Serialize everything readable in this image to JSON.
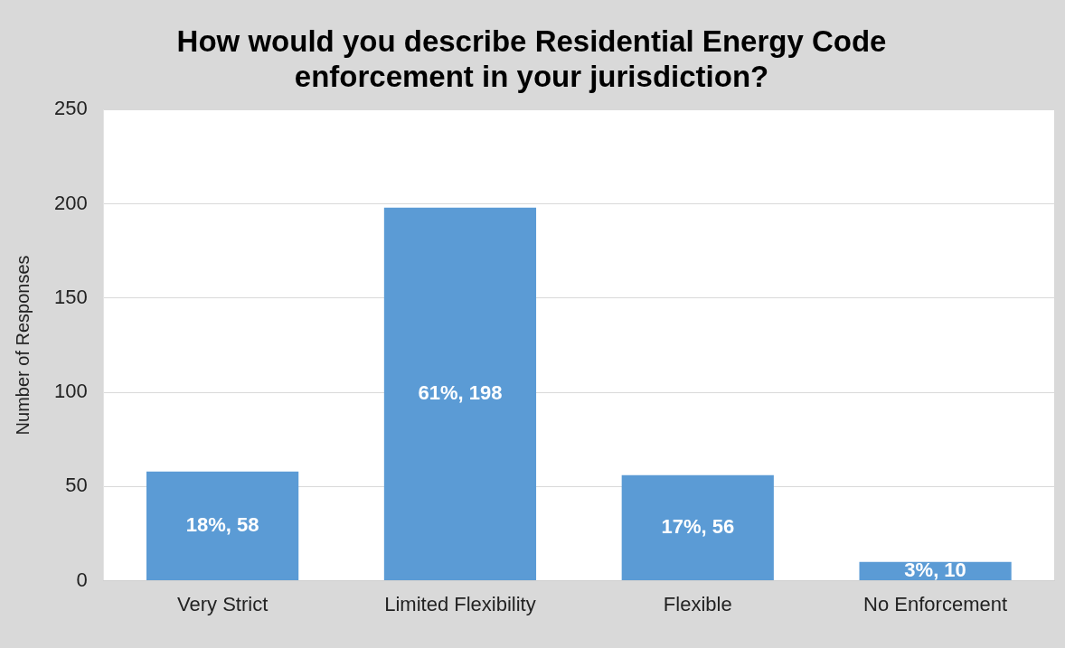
{
  "chart_data": {
    "type": "bar",
    "title": "How would you describe Residential Energy Code enforcement in your jurisdiction?",
    "ylabel": "Number of Responses",
    "categories": [
      "Very Strict",
      "Limited Flexibility",
      "Flexible",
      "No Enforcement"
    ],
    "values": [
      58,
      198,
      56,
      10
    ],
    "value_labels": [
      "18%, 58",
      "61%, 198",
      "17%, 56",
      "3%, 10"
    ],
    "color": "#5b9bd5",
    "ylim": [
      0,
      250
    ],
    "yticks": [
      0,
      50,
      100,
      150,
      200,
      250
    ],
    "grid": "y",
    "legend": false
  }
}
